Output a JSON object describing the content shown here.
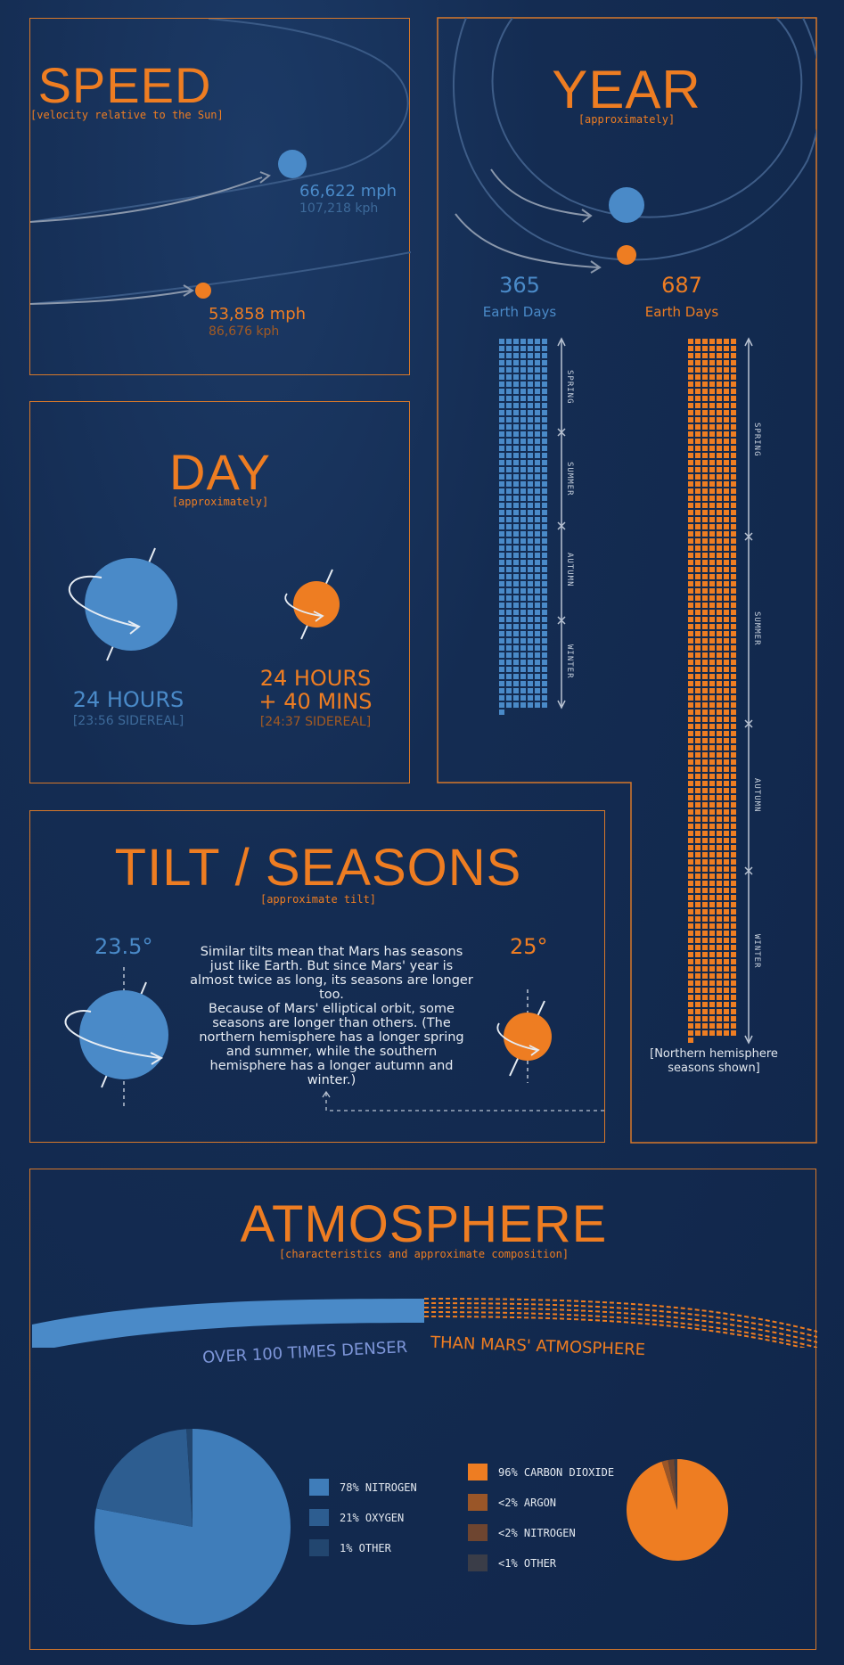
{
  "colors": {
    "earth": "#4a8ac8",
    "mars": "#ee7d22",
    "border": "#d7782a",
    "background": "#122a50"
  },
  "speed": {
    "title": "SPEED",
    "subtitle": "[velocity relative to the Sun]",
    "earth_mph": "66,622 mph",
    "earth_kph": "107,218 kph",
    "mars_mph": "53,858 mph",
    "mars_kph": "86,676 kph"
  },
  "year": {
    "title": "YEAR",
    "subtitle": "[approximately]",
    "earth_days_value": "365",
    "earth_days_label": "Earth Days",
    "mars_days_value": "687",
    "mars_days_label": "Earth Days",
    "earth_seasons": [
      "SPRING",
      "SUMMER",
      "AUTUMN",
      "WINTER"
    ],
    "mars_seasons": [
      "SPRING",
      "SUMMER",
      "AUTUMN",
      "WINTER"
    ],
    "note_line1": "[Northern hemisphere",
    "note_line2": "seasons shown]"
  },
  "day": {
    "title": "DAY",
    "subtitle": "[approximately]",
    "earth_value": "24 HOURS",
    "earth_sidereal": "[23:56 SIDEREAL]",
    "mars_value_line1": "24 HOURS",
    "mars_value_line2": "+ 40 MINS",
    "mars_sidereal": "[24:37 SIDEREAL]"
  },
  "tilt": {
    "title": "TILT / SEASONS",
    "subtitle": "[approximate tilt]",
    "earth_tilt": "23.5°",
    "mars_tilt": "25°",
    "paragraph1": "Similar tilts mean that Mars has seasons just like Earth. But since Mars' year is almost twice as long, its seasons are longer too.",
    "paragraph2": "Because of Mars' elliptical orbit, some seasons are longer than others. (The northern hemisphere has a longer spring and summer, while the southern hemisphere has a longer autumn and winter.)"
  },
  "atmosphere": {
    "title": "ATMOSPHERE",
    "subtitle": "[characteristics and approximate composition]",
    "density_part1": "OVER 100 TIMES DENSER",
    "density_part2": "THAN MARS' ATMOSPHERE",
    "earth_legend": [
      {
        "label": "78% NITROGEN",
        "color": "#3f7dba",
        "value": 78
      },
      {
        "label": "21% OXYGEN",
        "color": "#2d5d90",
        "value": 21
      },
      {
        "label": "1% OTHER",
        "color": "#22466f",
        "value": 1
      }
    ],
    "mars_legend": [
      {
        "label": "96% CARBON DIOXIDE",
        "color": "#ee7d22",
        "value": 96
      },
      {
        "label": "<2% ARGON",
        "color": "#9a5628",
        "value": 2
      },
      {
        "label": "<2% NITROGEN",
        "color": "#6e4530",
        "value": 2
      },
      {
        "label": "<1% OTHER",
        "color": "#3a3d48",
        "value": 1
      }
    ]
  }
}
